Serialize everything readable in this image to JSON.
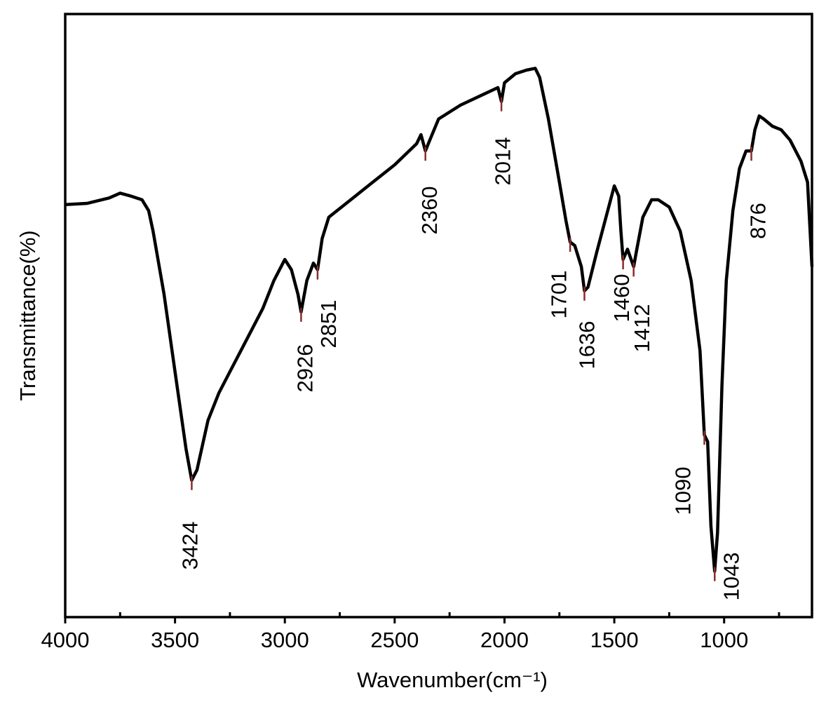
{
  "chart_data": {
    "type": "line",
    "xlabel": "Wavenumber(cm⁻¹)",
    "ylabel": "Transmittance(%)",
    "x": [
      4000,
      3900,
      3800,
      3750,
      3700,
      3650,
      3620,
      3600,
      3550,
      3500,
      3450,
      3424,
      3400,
      3350,
      3300,
      3250,
      3200,
      3100,
      3050,
      3000,
      2970,
      2940,
      2926,
      2900,
      2870,
      2851,
      2830,
      2800,
      2700,
      2600,
      2500,
      2400,
      2380,
      2360,
      2340,
      2300,
      2200,
      2100,
      2030,
      2014,
      2000,
      1950,
      1900,
      1860,
      1840,
      1800,
      1750,
      1720,
      1701,
      1680,
      1650,
      1636,
      1620,
      1580,
      1530,
      1500,
      1480,
      1470,
      1460,
      1440,
      1412,
      1400,
      1370,
      1330,
      1300,
      1250,
      1200,
      1150,
      1110,
      1090,
      1075,
      1060,
      1043,
      1030,
      1010,
      990,
      960,
      930,
      900,
      876,
      860,
      840,
      820,
      780,
      740,
      700,
      650,
      620,
      600
    ],
    "values": [
      68.4,
      68.6,
      69.5,
      70.3,
      69.8,
      69.2,
      67.4,
      64.0,
      53.5,
      40.7,
      27.9,
      22.7,
      24.4,
      32.6,
      37.2,
      40.7,
      44.2,
      51.2,
      55.8,
      59.3,
      57.6,
      53.5,
      50.6,
      55.8,
      58.7,
      57.6,
      62.8,
      66.3,
      69.2,
      72.1,
      75.0,
      78.5,
      80.0,
      77.3,
      79.1,
      82.6,
      84.9,
      86.6,
      87.8,
      85.5,
      88.6,
      90.1,
      90.7,
      91.0,
      89.5,
      82.6,
      72.1,
      65.7,
      62.2,
      61.6,
      58.1,
      54.1,
      54.7,
      60.5,
      67.4,
      71.5,
      69.8,
      64.0,
      59.3,
      61.0,
      58.1,
      60.5,
      66.3,
      69.2,
      69.2,
      68.0,
      64.0,
      55.8,
      44.2,
      30.2,
      29.1,
      15.1,
      7.6,
      14.0,
      38.4,
      55.8,
      67.4,
      74.4,
      77.3,
      77.3,
      80.8,
      83.1,
      82.6,
      81.4,
      80.8,
      79.1,
      75.6,
      72.1,
      58.1
    ],
    "color": "#000000",
    "xlim": [
      4000,
      600
    ],
    "ylim": [
      0,
      100
    ],
    "xticks": [
      4000,
      3500,
      3000,
      2500,
      2000,
      1500,
      1000
    ],
    "xminorticks": [
      3750,
      3250,
      2750,
      2250,
      1750,
      1250,
      750
    ],
    "annotations": [
      {
        "text": "3424",
        "x": 3424
      },
      {
        "text": "2926",
        "x": 2926
      },
      {
        "text": "2851",
        "x": 2851
      },
      {
        "text": "2360",
        "x": 2360
      },
      {
        "text": "2014",
        "x": 2014
      },
      {
        "text": "1701",
        "x": 1701
      },
      {
        "text": "1636",
        "x": 1636
      },
      {
        "text": "1460",
        "x": 1460
      },
      {
        "text": "1412",
        "x": 1412
      },
      {
        "text": "1090",
        "x": 1090
      },
      {
        "text": "1043",
        "x": 1043
      },
      {
        "text": "876",
        "x": 876
      }
    ],
    "annotation_color": "#8b2c2c"
  }
}
